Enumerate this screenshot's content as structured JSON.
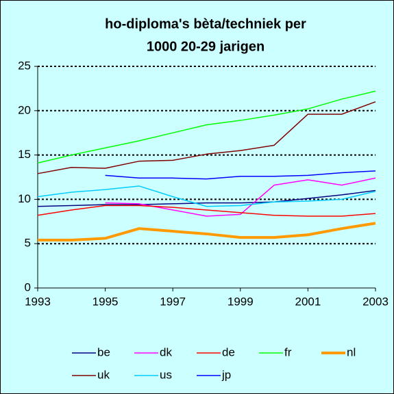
{
  "chart_data": {
    "type": "line",
    "title": [
      "ho-diploma's bèta/techniek per",
      "1000 20-29 jarigen"
    ],
    "x": [
      1993,
      1994,
      1995,
      1996,
      1997,
      1998,
      1999,
      2000,
      2001,
      2002,
      2003
    ],
    "xlim": [
      1993,
      2003
    ],
    "xticks": [
      1993,
      1995,
      1997,
      1999,
      2001,
      2003
    ],
    "ylim": [
      0,
      25
    ],
    "yticks": [
      0,
      5,
      10,
      15,
      20,
      25
    ],
    "grid": true,
    "series": [
      {
        "name": "be",
        "color": "#000080",
        "width": 1.5,
        "values": [
          9.2,
          9.3,
          9.4,
          9.4,
          9.5,
          9.6,
          9.6,
          9.7,
          10.1,
          10.5,
          11.0
        ]
      },
      {
        "name": "dk",
        "color": "#ff00ff",
        "width": 1.5,
        "values": [
          null,
          null,
          9.6,
          9.5,
          8.8,
          8.1,
          8.3,
          11.6,
          12.2,
          11.6,
          12.4
        ]
      },
      {
        "name": "de",
        "color": "#ff0000",
        "width": 1.5,
        "values": [
          8.2,
          8.8,
          9.3,
          9.3,
          9.1,
          8.8,
          8.5,
          8.2,
          8.1,
          8.1,
          8.4
        ]
      },
      {
        "name": "fr",
        "color": "#00ff00",
        "width": 1.5,
        "values": [
          14.1,
          15.0,
          15.8,
          16.6,
          17.5,
          18.4,
          18.9,
          19.5,
          20.2,
          21.3,
          22.2
        ]
      },
      {
        "name": "nl",
        "color": "#ff9900",
        "width": 4,
        "values": [
          5.4,
          5.4,
          5.6,
          6.7,
          6.4,
          6.1,
          5.7,
          5.7,
          6.0,
          6.7,
          7.3
        ]
      },
      {
        "name": "uk",
        "color": "#800000",
        "width": 1.5,
        "values": [
          12.9,
          13.6,
          13.5,
          14.3,
          14.4,
          15.1,
          15.5,
          16.1,
          19.6,
          19.6,
          21.0
        ]
      },
      {
        "name": "us",
        "color": "#00ccff",
        "width": 1.5,
        "values": [
          10.3,
          10.8,
          11.1,
          11.5,
          10.3,
          9.2,
          9.3,
          9.7,
          9.8,
          10.0,
          10.9
        ]
      },
      {
        "name": "jp",
        "color": "#0000ff",
        "width": 1.5,
        "values": [
          null,
          null,
          12.7,
          12.4,
          12.4,
          12.3,
          12.6,
          12.6,
          12.7,
          13.0,
          13.2
        ]
      }
    ]
  }
}
